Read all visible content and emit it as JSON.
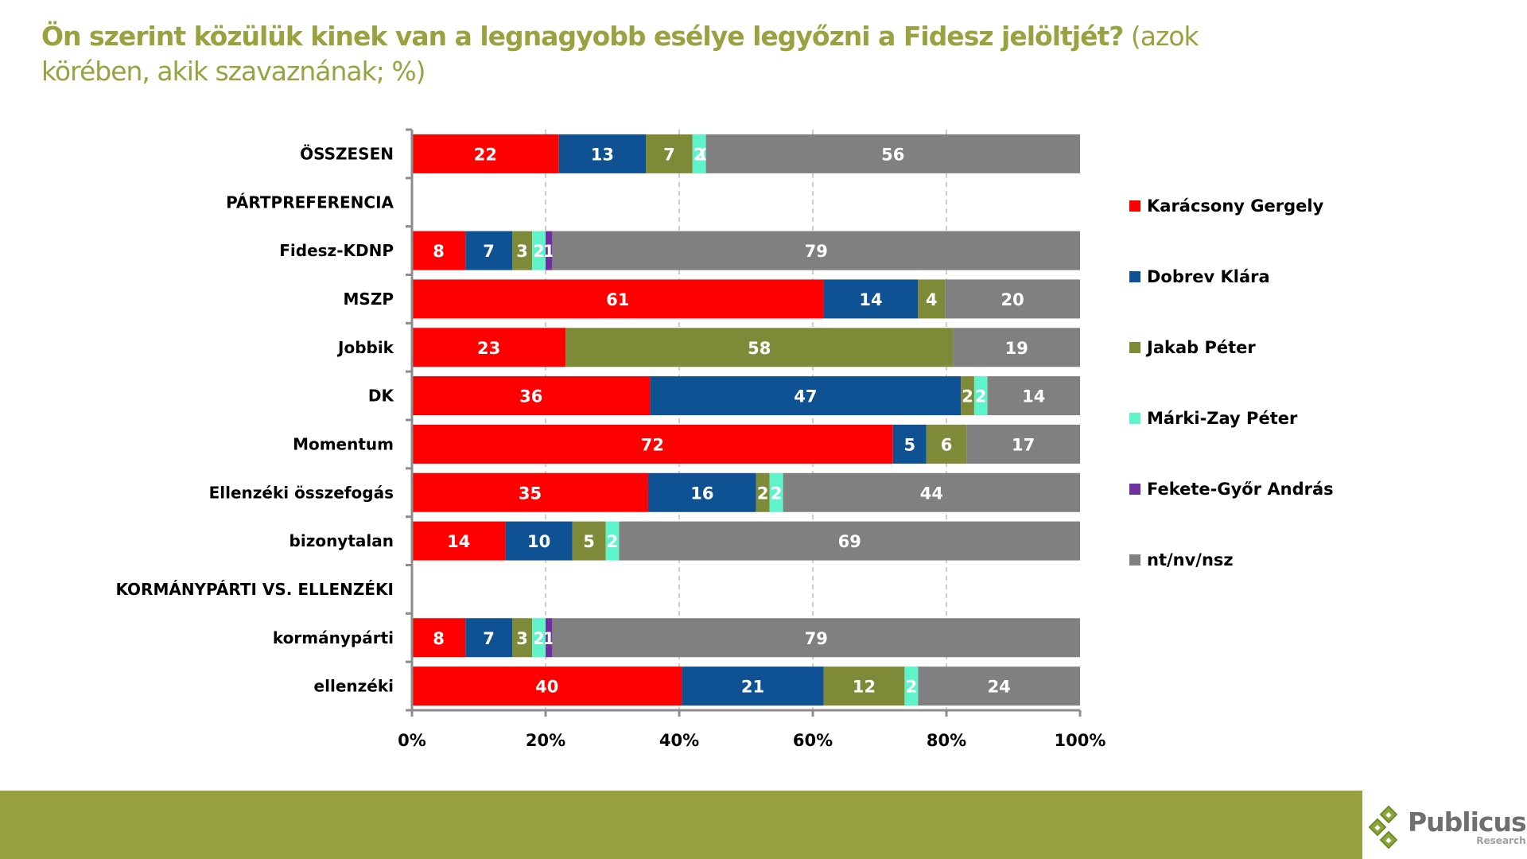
{
  "title": {
    "bold": "Ön szerint közülük kinek van a legnagyobb esélye legyőzni a Fidesz jelöltjét?",
    "normal": " (azok körében, akik szavaznának; %)"
  },
  "colors": {
    "title": "#98A23E",
    "footer": "#98A23E"
  },
  "chart_data": {
    "type": "bar",
    "orientation": "horizontal",
    "stacked": "100%",
    "title": "Ön szerint közülük kinek van a legnagyobb esélye legyőzni a Fidesz jelöltjét? (azok körében, akik szavaznának; %)",
    "xlabel": "",
    "ylabel": "",
    "xlim": [
      0,
      100
    ],
    "x_ticks": [
      "0%",
      "20%",
      "40%",
      "60%",
      "80%",
      "100%"
    ],
    "grid": "vertical dashed",
    "legend_position": "right",
    "categories": [
      "ÖSSZESEN",
      "PÁRTPREFERENCIA",
      "Fidesz-KDNP",
      "MSZP",
      "Jobbik",
      "DK",
      "Momentum",
      "Ellenzéki összefogás",
      "bizonytalan",
      "KORMÁNYPÁRTI VS. ELLENZÉKI",
      "kormánypárti",
      "ellenzéki"
    ],
    "series": [
      {
        "name": "Karácsony Gergely",
        "color": "#FF0000",
        "values": [
          22,
          null,
          8,
          61,
          23,
          36,
          72,
          35,
          14,
          null,
          8,
          40
        ]
      },
      {
        "name": "Dobrev Klára",
        "color": "#0F5294",
        "values": [
          13,
          null,
          7,
          14,
          null,
          47,
          5,
          16,
          10,
          null,
          7,
          21
        ]
      },
      {
        "name": "Jakab Péter",
        "color": "#7F8A38",
        "values": [
          7,
          null,
          3,
          4,
          58,
          2,
          6,
          2,
          5,
          null,
          3,
          12
        ]
      },
      {
        "name": "Márki-Zay Péter",
        "color": "#5EF3C9",
        "values": [
          2,
          null,
          2,
          null,
          null,
          2,
          null,
          2,
          2,
          null,
          2,
          2
        ]
      },
      {
        "name": "Fekete-Győr András",
        "color": "#7030A0",
        "values": [
          0,
          null,
          1,
          null,
          null,
          null,
          null,
          null,
          null,
          null,
          1,
          null
        ]
      },
      {
        "name": "nt/nv/nsz",
        "color": "#808080",
        "values": [
          56,
          null,
          79,
          20,
          19,
          14,
          17,
          44,
          69,
          null,
          79,
          24
        ]
      }
    ]
  },
  "logo": {
    "name": "Publicus",
    "sub": "Research"
  }
}
